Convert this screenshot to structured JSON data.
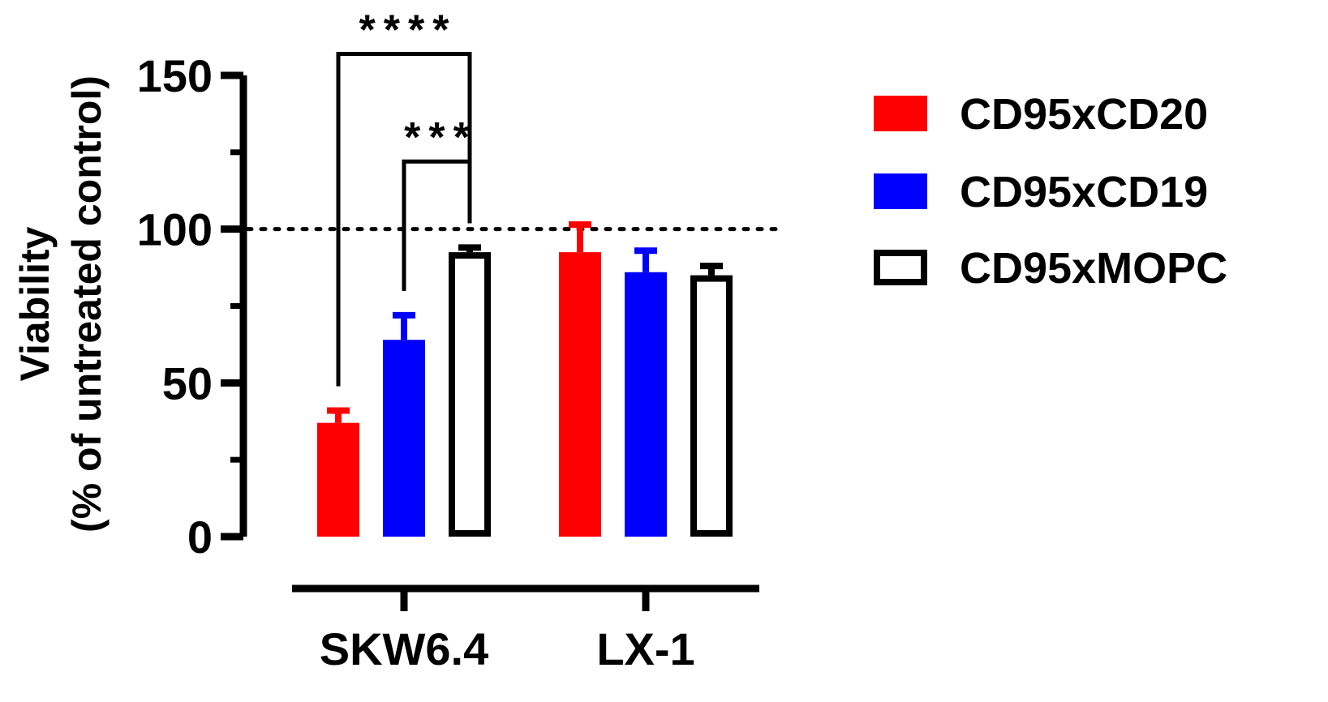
{
  "chart_data": {
    "type": "bar",
    "categories": [
      "SKW6.4",
      "LX-1"
    ],
    "series": [
      {
        "name": "CD95xCD20",
        "color": "#ff0000",
        "fill": "solid",
        "values": [
          37,
          92.5
        ],
        "errors": [
          4,
          9
        ]
      },
      {
        "name": "CD95xCD19",
        "color": "#0000ff",
        "fill": "solid",
        "values": [
          64,
          86
        ],
        "errors": [
          8,
          7
        ]
      },
      {
        "name": "CD95xMOPC",
        "color": "#000000",
        "fill": "open",
        "values": [
          92.5,
          85
        ],
        "errors": [
          1.5,
          3
        ]
      }
    ],
    "ylabel_line1": "Viability",
    "ylabel_line2": "(% of untreated control)",
    "xlabel": "",
    "ylim": [
      0,
      150
    ],
    "yticks": [
      0,
      50,
      100,
      150
    ],
    "ytick_labels": [
      "0",
      "50",
      "100",
      "150"
    ],
    "reference_line": {
      "y": 100,
      "style": "dotted"
    },
    "significance": [
      {
        "label": "****",
        "category": "SKW6.4",
        "from_series": 0,
        "to_series": 2,
        "level": 157
      },
      {
        "label": "***",
        "category": "SKW6.4",
        "from_series": 1,
        "to_series": 2,
        "level": 122
      }
    ],
    "legend_position": "top-right"
  }
}
